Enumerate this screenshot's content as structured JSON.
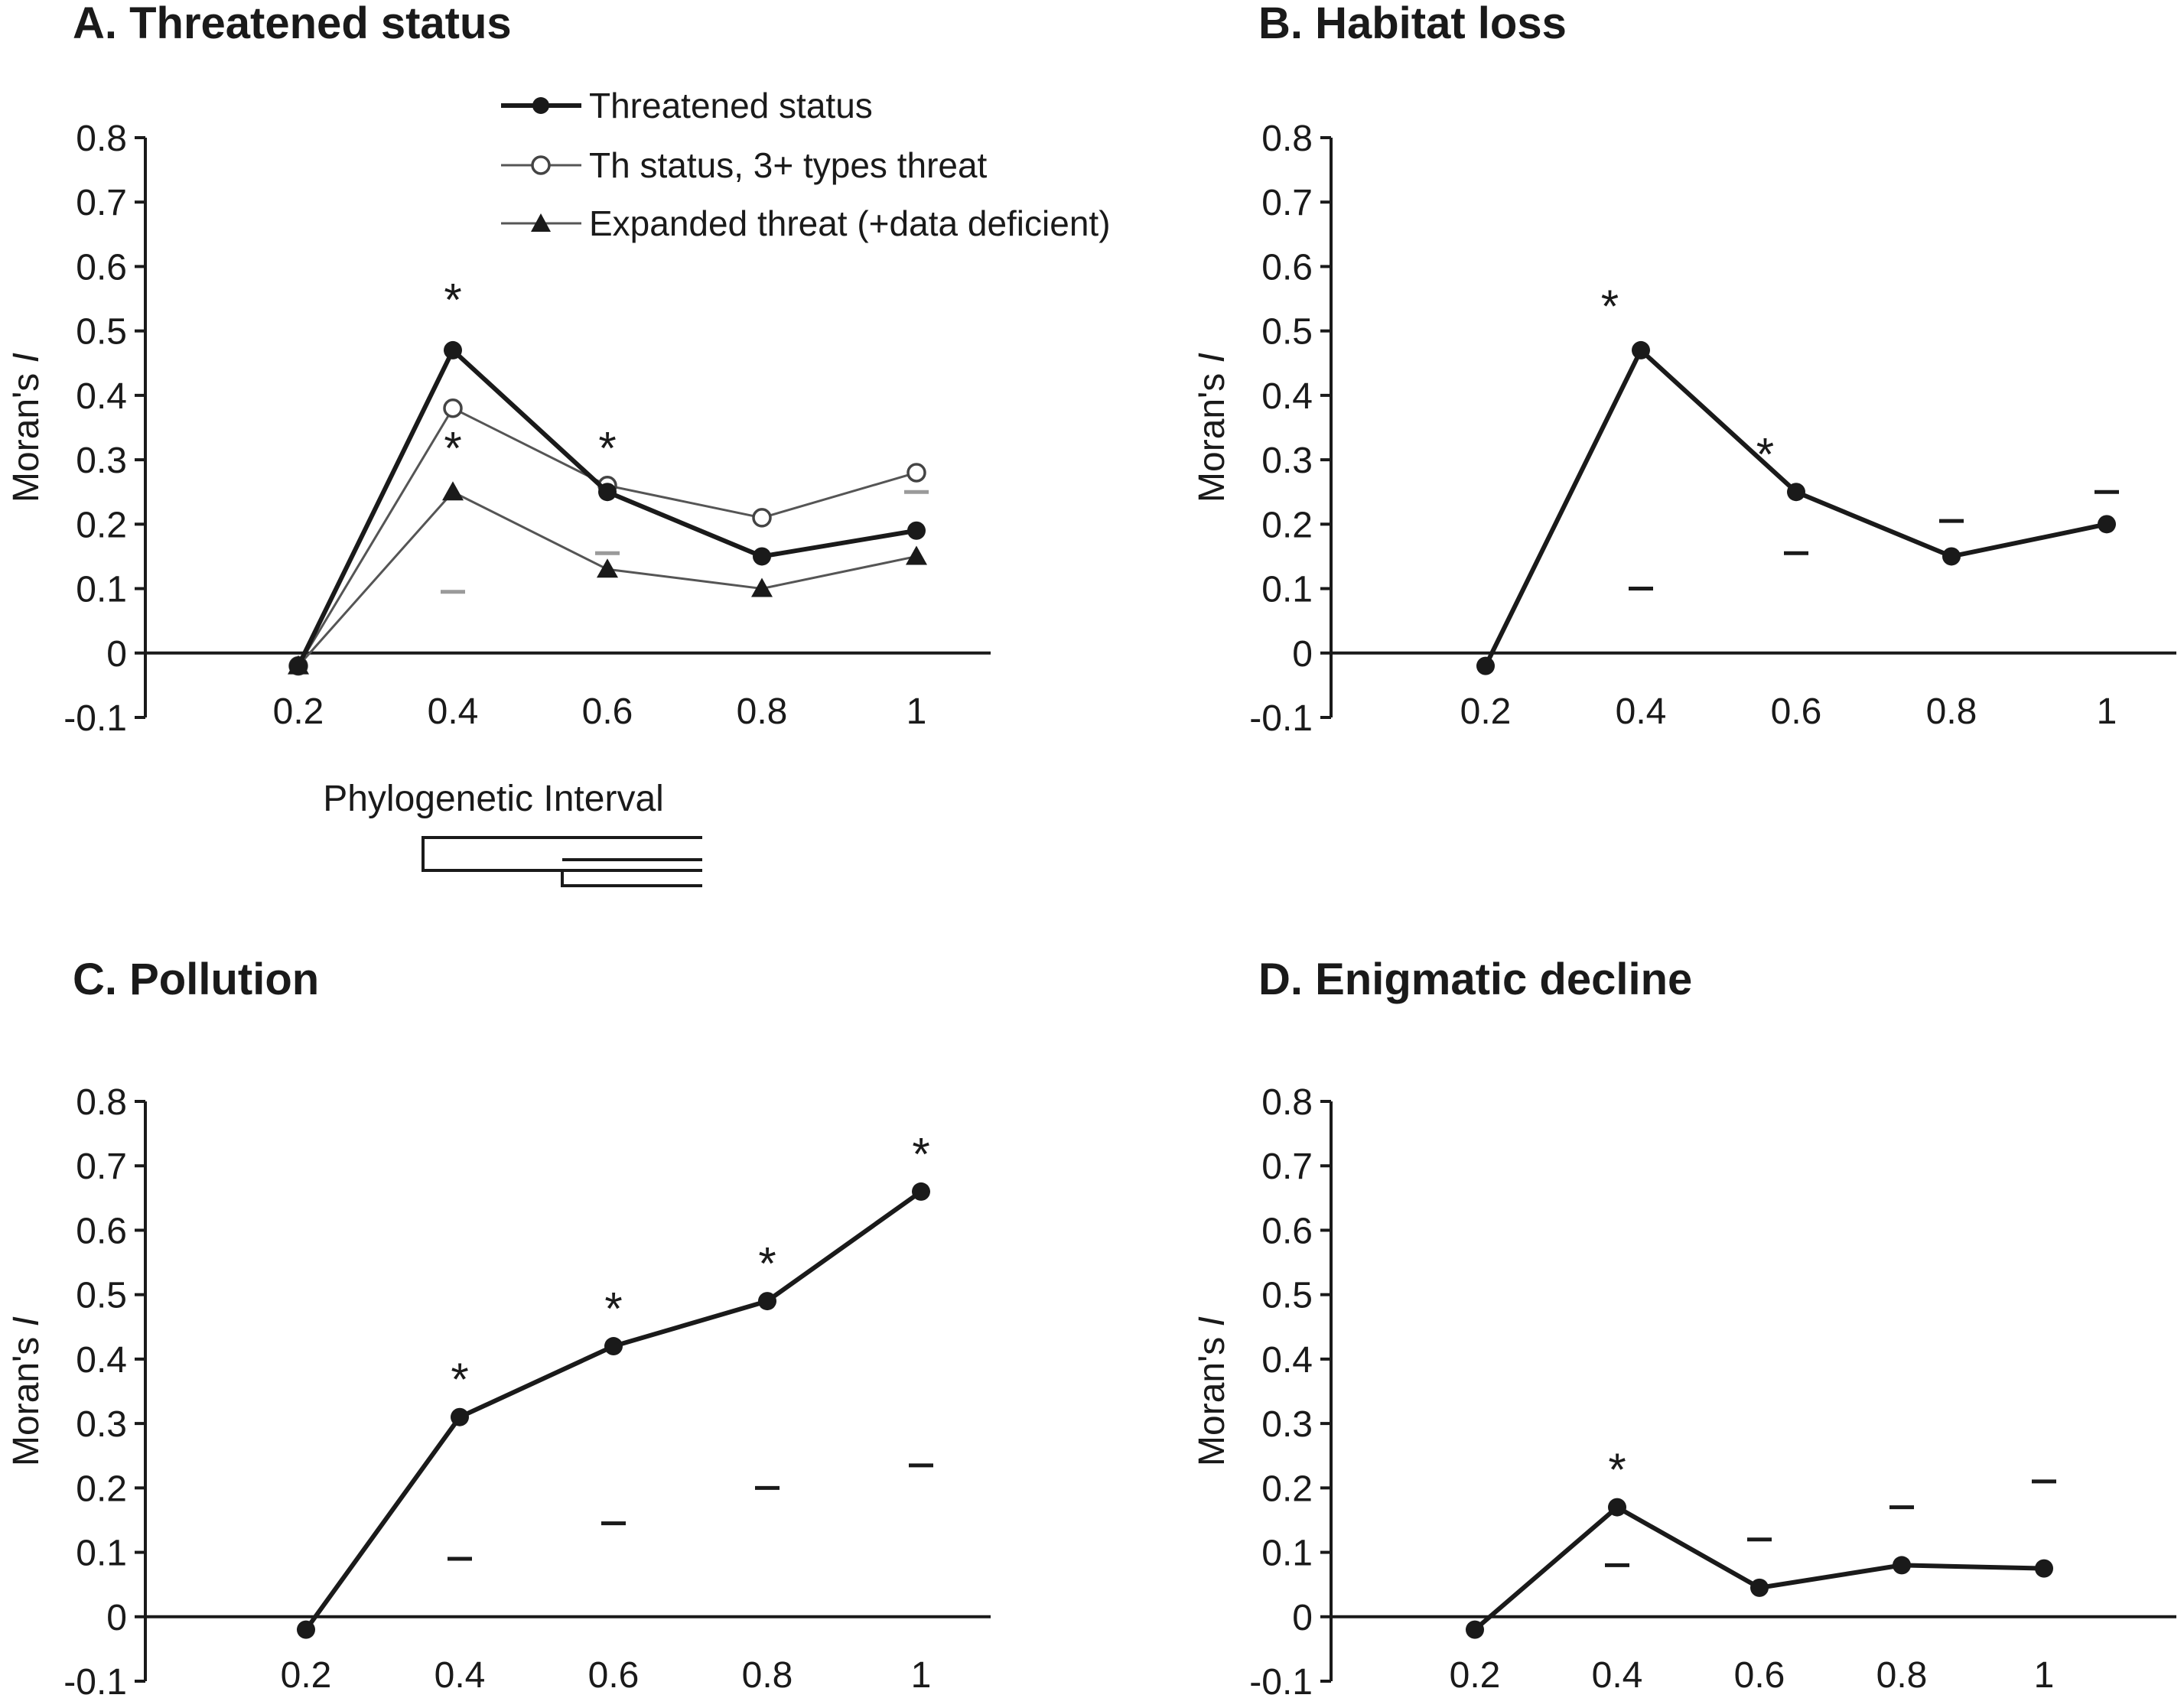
{
  "chart_data": [
    {
      "type": "line",
      "title": "A. Threatened status",
      "xlabel": "",
      "ylabel": "Moran's I",
      "ylim": [
        -0.1,
        0.8
      ],
      "yticks": [
        "0.8",
        "0.7",
        "0.6",
        "0.5",
        "0.4",
        "0.3",
        "0.2",
        "0.1",
        "0",
        "-0.1"
      ],
      "categories": [
        "0.2",
        "0.4",
        "0.6",
        "0.8",
        "1"
      ],
      "x": [
        0.2,
        0.4,
        0.6,
        0.8,
        1.0
      ],
      "series": [
        {
          "name": "Threatened status",
          "marker": "filled-circle",
          "stroke": "heavy",
          "values": [
            -0.02,
            0.47,
            0.25,
            0.15,
            0.19
          ]
        },
        {
          "name": "Th status, 3+ types threat",
          "marker": "open-circle",
          "stroke": "thin",
          "values": [
            -0.02,
            0.38,
            0.26,
            0.21,
            0.28
          ]
        },
        {
          "name": "Expanded threat (+data deficient)",
          "marker": "filled-triangle",
          "stroke": "thin",
          "values": [
            -0.02,
            0.25,
            0.13,
            0.1,
            0.15
          ]
        }
      ],
      "significance_markers": [
        {
          "x": 0.4,
          "y": 0.55,
          "label": "*"
        },
        {
          "x": 0.4,
          "y": 0.32,
          "label": "*"
        },
        {
          "x": 0.6,
          "y": 0.32,
          "label": "*"
        }
      ],
      "null_marks": [
        {
          "x": 0.4,
          "y": 0.095
        },
        {
          "x": 0.6,
          "y": 0.155
        },
        {
          "x": 1.0,
          "y": 0.25
        }
      ],
      "interval_label": "Phylogenetic Interval"
    },
    {
      "type": "line",
      "title": "B. Habitat loss",
      "xlabel": "",
      "ylabel": "Moran's I",
      "ylim": [
        -0.1,
        0.8
      ],
      "yticks": [
        "0.8",
        "0.7",
        "0.6",
        "0.5",
        "0.4",
        "0.3",
        "0.2",
        "0.1",
        "0",
        "-0.1"
      ],
      "categories": [
        "0.2",
        "0.4",
        "0.6",
        "0.8",
        "1"
      ],
      "x": [
        0.2,
        0.4,
        0.6,
        0.8,
        1.0
      ],
      "series": [
        {
          "name": "Habitat loss",
          "marker": "filled-circle",
          "stroke": "heavy",
          "values": [
            -0.02,
            0.47,
            0.25,
            0.15,
            0.2
          ]
        }
      ],
      "significance_markers": [
        {
          "x": 0.36,
          "y": 0.54,
          "label": "*"
        },
        {
          "x": 0.56,
          "y": 0.31,
          "label": "*"
        }
      ],
      "null_marks": [
        {
          "x": 0.4,
          "y": 0.1
        },
        {
          "x": 0.6,
          "y": 0.155
        },
        {
          "x": 0.8,
          "y": 0.205
        },
        {
          "x": 1.0,
          "y": 0.25
        }
      ]
    },
    {
      "type": "line",
      "title": "C. Pollution",
      "xlabel": "",
      "ylabel": "Moran's I",
      "ylim": [
        -0.1,
        0.8
      ],
      "yticks": [
        "0.8",
        "0.7",
        "0.6",
        "0.5",
        "0.4",
        "0.3",
        "0.2",
        "0.1",
        "0",
        "-0.1"
      ],
      "categories": [
        "0.2",
        "0.4",
        "0.6",
        "0.8",
        "1"
      ],
      "x": [
        0.2,
        0.4,
        0.6,
        0.8,
        1.0
      ],
      "series": [
        {
          "name": "Pollution",
          "marker": "filled-circle",
          "stroke": "heavy",
          "values": [
            -0.02,
            0.31,
            0.42,
            0.49,
            0.66
          ]
        }
      ],
      "significance_markers": [
        {
          "x": 0.4,
          "y": 0.37,
          "label": "*"
        },
        {
          "x": 0.6,
          "y": 0.48,
          "label": "*"
        },
        {
          "x": 0.8,
          "y": 0.55,
          "label": "*"
        },
        {
          "x": 1.0,
          "y": 0.72,
          "label": "*"
        }
      ],
      "null_marks": [
        {
          "x": 0.4,
          "y": 0.09
        },
        {
          "x": 0.6,
          "y": 0.145
        },
        {
          "x": 0.8,
          "y": 0.2
        },
        {
          "x": 1.0,
          "y": 0.235
        }
      ]
    },
    {
      "type": "line",
      "title": "D. Enigmatic decline",
      "xlabel": "",
      "ylabel": "Moran's I",
      "ylim": [
        -0.1,
        0.8
      ],
      "yticks": [
        "0.8",
        "0.7",
        "0.6",
        "0.5",
        "0.4",
        "0.3",
        "0.2",
        "0.1",
        "0",
        "-0.1"
      ],
      "categories": [
        "0.2",
        "0.4",
        "0.6",
        "0.8",
        "1"
      ],
      "x": [
        0.2,
        0.4,
        0.6,
        0.8,
        1.0
      ],
      "series": [
        {
          "name": "Enigmatic decline",
          "marker": "filled-circle",
          "stroke": "heavy",
          "values": [
            -0.02,
            0.17,
            0.045,
            0.08,
            0.075
          ]
        }
      ],
      "significance_markers": [
        {
          "x": 0.4,
          "y": 0.23,
          "label": "*"
        }
      ],
      "null_marks": [
        {
          "x": 0.4,
          "y": 0.08
        },
        {
          "x": 0.6,
          "y": 0.12
        },
        {
          "x": 0.8,
          "y": 0.17
        },
        {
          "x": 1.0,
          "y": 0.21
        }
      ]
    }
  ]
}
